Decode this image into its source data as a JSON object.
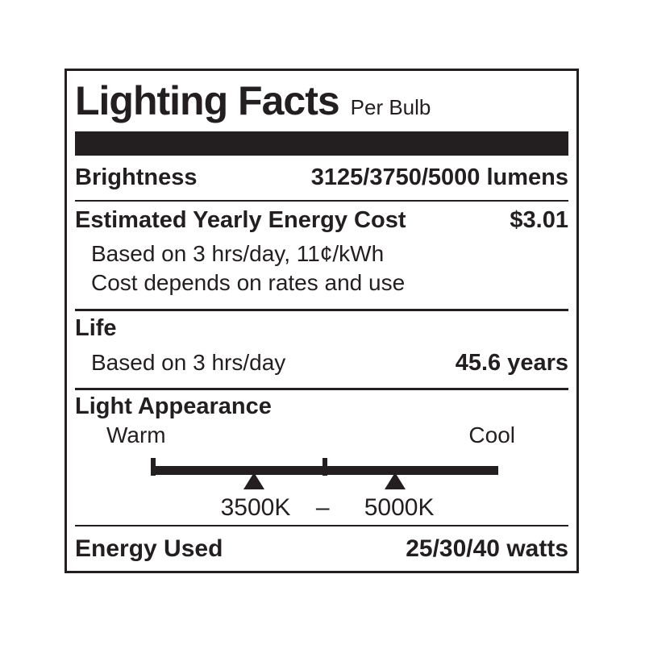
{
  "label": {
    "ink_color": "#231f20",
    "title": "Lighting Facts",
    "subtitle": "Per Bulb",
    "brightness": {
      "name": "Brightness",
      "value": "3125/3750/5000 lumens"
    },
    "energy_cost": {
      "name": "Estimated Yearly Energy Cost",
      "value": "$3.01",
      "notes": [
        "Based on 3 hrs/day, 11¢/kWh",
        "Cost depends on rates and use"
      ]
    },
    "life": {
      "name": "Life",
      "basis": "Based on 3 hrs/day",
      "value": "45.6 years"
    },
    "light_appearance": {
      "name": "Light Appearance",
      "warm_label": "Warm",
      "cool_label": "Cool",
      "range_separator": "–",
      "markers": [
        {
          "kelvin": "3500K"
        },
        {
          "kelvin": "5000K"
        }
      ]
    },
    "energy_used": {
      "name": "Energy Used",
      "value": "25/30/40 watts"
    }
  }
}
